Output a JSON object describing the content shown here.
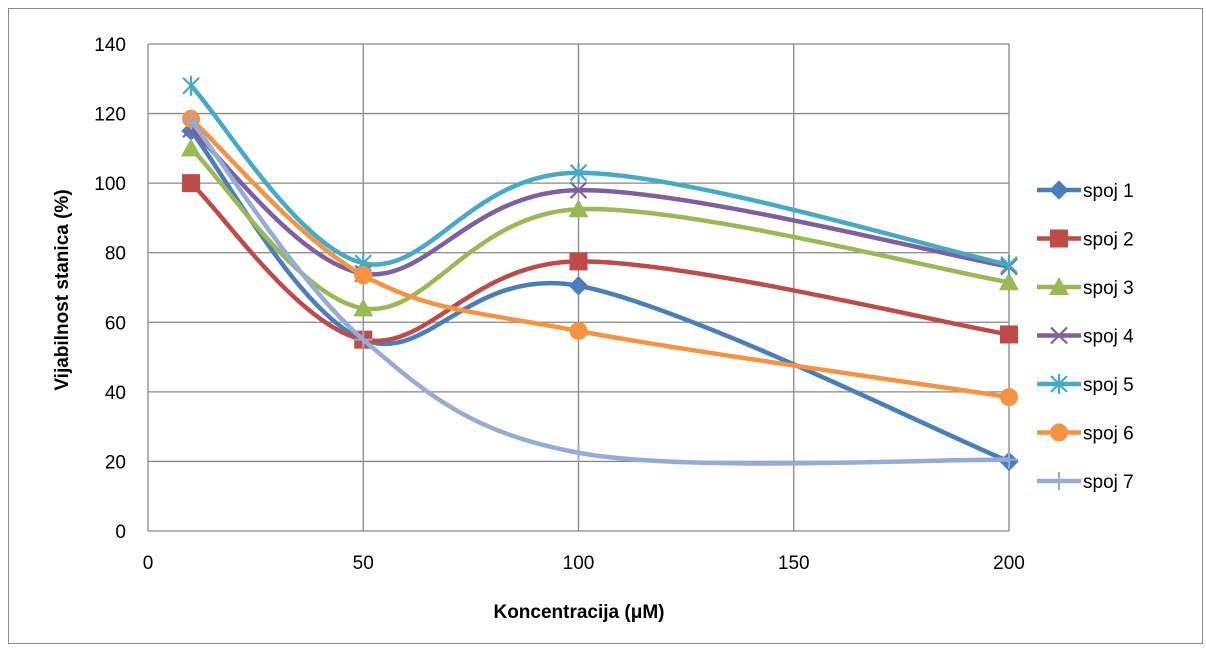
{
  "chart_data": {
    "type": "line",
    "smooth": true,
    "title": "",
    "xlabel": "Koncentracija (μM)",
    "ylabel": "Vijabilnost stanica (%)",
    "xlim": [
      0,
      200
    ],
    "ylim": [
      0,
      140
    ],
    "xticks": [
      0,
      50,
      100,
      150,
      200
    ],
    "yticks": [
      0,
      20,
      40,
      60,
      80,
      100,
      120,
      140
    ],
    "grid": true,
    "legend_position": "right",
    "x": [
      10,
      50,
      100,
      200
    ],
    "series": [
      {
        "name": "spoj 1",
        "values": [
          115,
          55,
          70.5,
          20
        ],
        "color": "#4a7ebb",
        "marker": "diamond"
      },
      {
        "name": "spoj 2",
        "values": [
          100,
          55,
          77.5,
          56.5
        ],
        "color": "#be4b48",
        "marker": "square"
      },
      {
        "name": "spoj 3",
        "values": [
          110,
          64,
          92.5,
          71.5
        ],
        "color": "#98b954",
        "marker": "triangle"
      },
      {
        "name": "spoj 4",
        "values": [
          115.5,
          74,
          98,
          76
        ],
        "color": "#7d60a0",
        "marker": "x"
      },
      {
        "name": "spoj 5",
        "values": [
          128,
          77,
          103,
          76.5
        ],
        "color": "#46aac5",
        "marker": "star"
      },
      {
        "name": "spoj 6",
        "values": [
          118.5,
          73.5,
          57.5,
          38.5
        ],
        "color": "#f69240",
        "marker": "circle"
      },
      {
        "name": "spoj 7",
        "values": [
          118,
          55,
          22.5,
          20.5
        ],
        "color": "#94acd6",
        "marker": "plus"
      }
    ]
  }
}
